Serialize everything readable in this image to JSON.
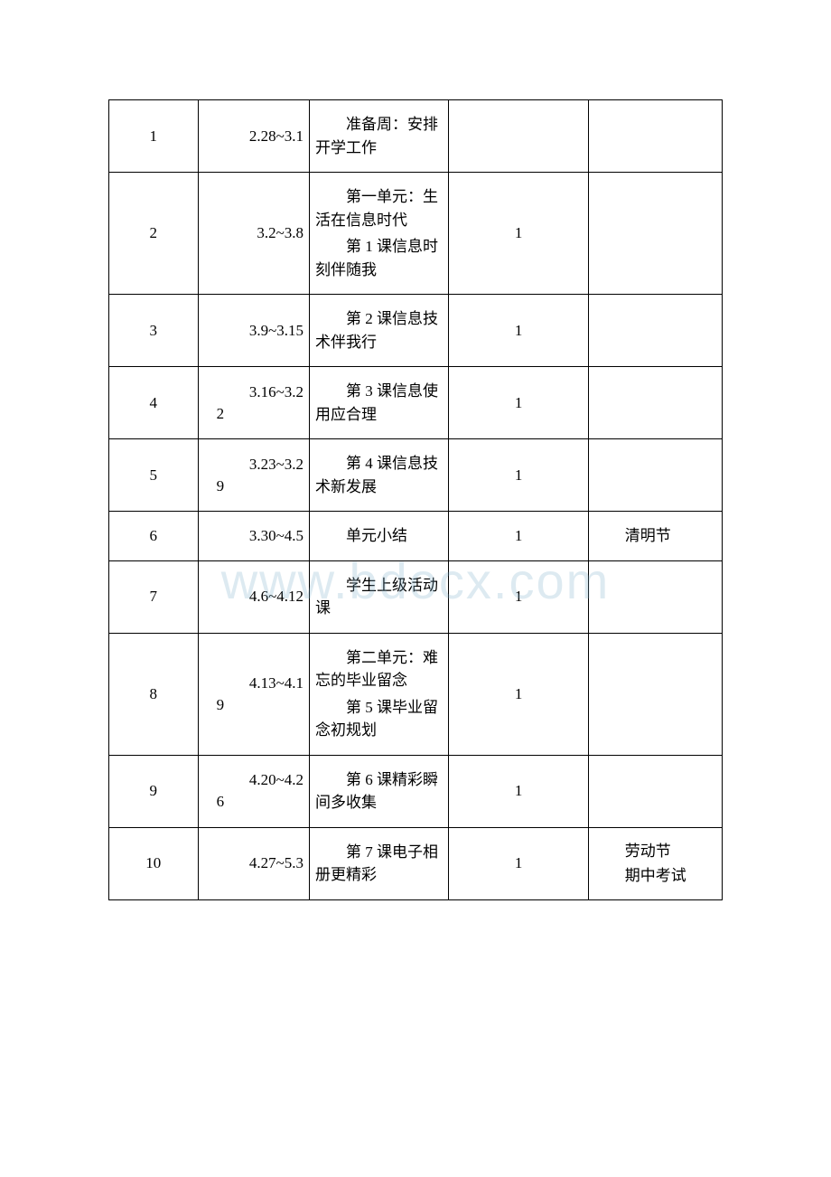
{
  "watermark": "www.bdocx.com",
  "table": {
    "columns": [
      {
        "key": "week",
        "class": "col-week"
      },
      {
        "key": "date",
        "class": "col-date"
      },
      {
        "key": "content",
        "class": "col-content"
      },
      {
        "key": "hours",
        "class": "col-hours"
      },
      {
        "key": "note",
        "class": "col-note"
      }
    ],
    "rows": [
      {
        "week": "1",
        "date_simple": "2.28~3.1",
        "content": [
          "准备周：安排开学工作"
        ],
        "hours": "",
        "note": []
      },
      {
        "week": "2",
        "date_simple": "3.2~3.8",
        "content": [
          "第一单元：生活在信息时代",
          "第 1 课信息时刻伴随我"
        ],
        "hours": "1",
        "note": []
      },
      {
        "week": "3",
        "date_simple": "3.9~3.15",
        "content": [
          "第 2 课信息技术伴我行"
        ],
        "hours": "1",
        "note": []
      },
      {
        "week": "4",
        "date_wrap": [
          "3.16~3.2",
          "2"
        ],
        "content": [
          "第 3 课信息使用应合理"
        ],
        "hours": "1",
        "note": []
      },
      {
        "week": "5",
        "date_wrap": [
          "3.23~3.2",
          "9"
        ],
        "content": [
          "第 4 课信息技术新发展"
        ],
        "hours": "1",
        "note": []
      },
      {
        "week": "6",
        "date_simple": "3.30~4.5",
        "content": [
          "单元小结"
        ],
        "hours": "1",
        "note": [
          "清明节"
        ]
      },
      {
        "week": "7",
        "date_simple": "4.6~4.12",
        "content": [
          "学生上级活动课"
        ],
        "hours": "1",
        "note": []
      },
      {
        "week": "8",
        "date_wrap": [
          "4.13~4.1",
          "9"
        ],
        "content": [
          "第二单元：难忘的毕业留念",
          "第 5 课毕业留念初规划"
        ],
        "hours": "1",
        "note": []
      },
      {
        "week": "9",
        "date_wrap": [
          "4.20~4.2",
          "6"
        ],
        "content": [
          "第 6 课精彩瞬间多收集"
        ],
        "hours": "1",
        "note": []
      },
      {
        "week": "10",
        "date_simple": "4.27~5.3",
        "content": [
          "第 7 课电子相册更精彩"
        ],
        "hours": "1",
        "note": [
          "劳动节",
          "期中考试"
        ]
      }
    ]
  }
}
